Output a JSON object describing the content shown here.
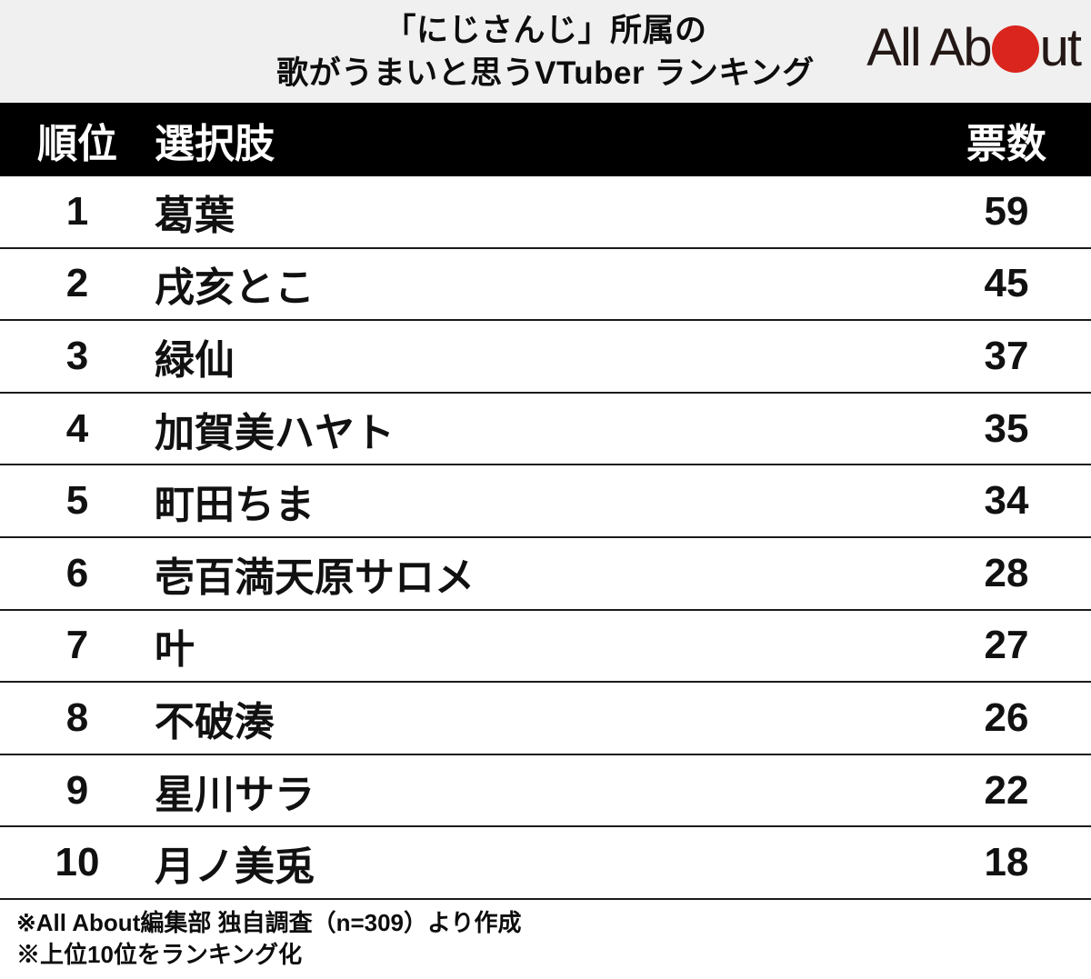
{
  "title": {
    "line1": "「にじさんじ」所属の",
    "line2": "歌がうまいと思うVTuber ランキング"
  },
  "logo": {
    "name": "All About",
    "text_before_dot": "All Ab",
    "text_after_dot": "ut"
  },
  "table": {
    "headers": {
      "rank": "順位",
      "choice": "選択肢",
      "votes": "票数"
    },
    "rows": [
      {
        "rank": "1",
        "name": "葛葉",
        "votes": "59"
      },
      {
        "rank": "2",
        "name": "戌亥とこ",
        "votes": "45"
      },
      {
        "rank": "3",
        "name": "緑仙",
        "votes": "37"
      },
      {
        "rank": "4",
        "name": "加賀美ハヤト",
        "votes": "35"
      },
      {
        "rank": "5",
        "name": "町田ちま",
        "votes": "34"
      },
      {
        "rank": "6",
        "name": "壱百満天原サロメ",
        "votes": "28"
      },
      {
        "rank": "7",
        "name": "叶",
        "votes": "27"
      },
      {
        "rank": "8",
        "name": "不破湊",
        "votes": "26"
      },
      {
        "rank": "9",
        "name": "星川サラ",
        "votes": "22"
      },
      {
        "rank": "10",
        "name": "月ノ美兎",
        "votes": "18"
      }
    ]
  },
  "footer": {
    "note1": "※All About編集部 独自調査（n=309）より作成",
    "note2": "※上位10位をランキング化"
  },
  "colors": {
    "page_bg": "#f0f0f0",
    "header_bg": "#000000",
    "header_text": "#ffffff",
    "row_bg": "#ffffff",
    "line": "#1a1a1a",
    "text": "#111111",
    "logo_red": "#d9251d",
    "logo_text": "#231815"
  },
  "chart_data": {
    "type": "table",
    "title": "「にじさんじ」所属の 歌がうまいと思うVTuber ランキング",
    "columns": [
      "順位",
      "選択肢",
      "票数"
    ],
    "categories": [
      "葛葉",
      "戌亥とこ",
      "緑仙",
      "加賀美ハヤト",
      "町田ちま",
      "壱百満天原サロメ",
      "叶",
      "不破湊",
      "星川サラ",
      "月ノ美兎"
    ],
    "values": [
      59,
      45,
      37,
      35,
      34,
      28,
      27,
      26,
      22,
      18
    ],
    "ranks": [
      1,
      2,
      3,
      4,
      5,
      6,
      7,
      8,
      9,
      10
    ],
    "sample_size": "n=309",
    "source_note": "※All About編集部 独自調査（n=309）より作成",
    "scope_note": "※上位10位をランキング化"
  }
}
